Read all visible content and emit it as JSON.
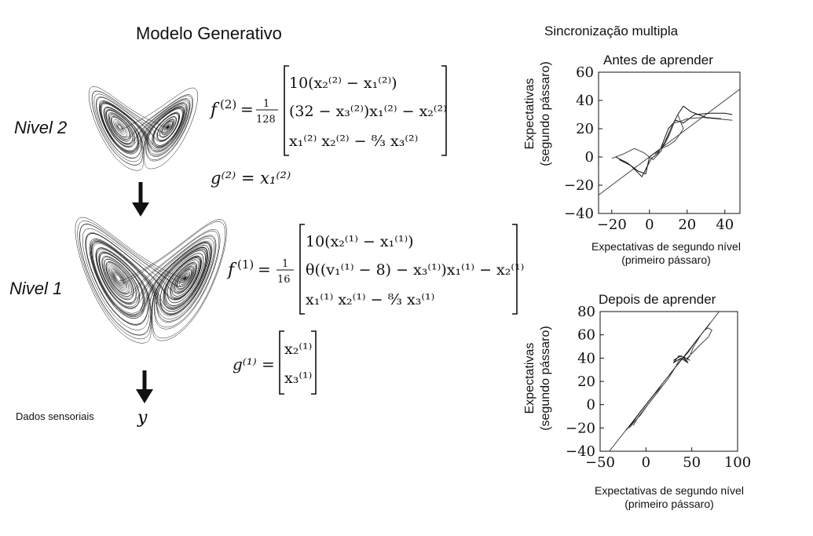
{
  "titles": {
    "main": "Modelo Generativo",
    "right": "Sincronização multipla"
  },
  "levels": {
    "level2": "Nivel 2",
    "level1": "Nivel 1",
    "sensory": "Dados sensoriais",
    "output_symbol": "y"
  },
  "equations": {
    "f2": {
      "lhs": "f",
      "lhs_sup": "(2)",
      "frac_num": "1",
      "frac_den": "128",
      "rows": [
        "10(x₂⁽²⁾ − x₁⁽²⁾)",
        "(32 − x₃⁽²⁾)x₁⁽²⁾ − x₂⁽²⁾",
        "x₁⁽²⁾ x₂⁽²⁾ − ⁸⁄₃ x₃⁽²⁾"
      ]
    },
    "g2": "g⁽²⁾ = x₁⁽²⁾",
    "f1": {
      "lhs": "f",
      "lhs_sup": "(1)",
      "frac_num": "1",
      "frac_den": "16",
      "rows": [
        "10(x₂⁽¹⁾ − x₁⁽¹⁾)",
        "θ((v₁⁽¹⁾ − 8) − x₃⁽¹⁾)x₁⁽¹⁾ − x₂⁽¹⁾",
        "x₁⁽¹⁾ x₂⁽¹⁾ − ⁸⁄₃ x₃⁽¹⁾"
      ]
    },
    "g1": {
      "lhs": "g⁽¹⁾ =",
      "rows": [
        "x₂⁽¹⁾",
        "x₃⁽¹⁾"
      ]
    }
  },
  "chart_data": [
    {
      "type": "line",
      "title": "Antes de aprender",
      "xlabel": "Expectativas de segundo nível\n(primeiro pássaro)",
      "ylabel": "Expectativas\n(segundo pássaro)",
      "xlim": [
        -27,
        48
      ],
      "ylim": [
        -40,
        60
      ],
      "xticks": [
        -20,
        0,
        20,
        40
      ],
      "yticks": [
        -40,
        -20,
        0,
        20,
        40,
        60
      ],
      "identity_line": true,
      "series": [
        {
          "x": [
            -18,
            -12,
            -6,
            -2,
            0,
            3,
            6,
            10,
            14,
            18,
            24,
            32,
            40,
            44
          ],
          "y": [
            0,
            -4,
            -10,
            -12,
            0,
            3,
            6,
            20,
            26,
            24,
            30,
            31,
            31,
            30
          ]
        },
        {
          "x": [
            -20,
            -14,
            -8,
            -3,
            2,
            6,
            10,
            13,
            16,
            20,
            28,
            36,
            44
          ],
          "y": [
            -1,
            2,
            6,
            3,
            -2,
            4,
            14,
            24,
            25,
            27,
            28,
            27,
            26
          ]
        },
        {
          "x": [
            -16,
            -10,
            -4,
            1,
            4,
            8,
            12,
            15,
            18,
            22,
            30,
            38
          ],
          "y": [
            -2,
            -6,
            -14,
            -1,
            2,
            10,
            22,
            30,
            36,
            32,
            28,
            27
          ]
        },
        {
          "x": [
            2,
            6,
            9,
            12,
            15,
            18,
            14,
            10,
            6,
            3
          ],
          "y": [
            0,
            4,
            12,
            22,
            30,
            20,
            12,
            8,
            6,
            2
          ]
        }
      ]
    },
    {
      "type": "line",
      "title": "Depois de aprender",
      "xlabel": "Expectativas de segundo nível\n(primeiro pássaro)",
      "ylabel": "Expectativas\n(segundo pássaro)",
      "xlim": [
        -50,
        100
      ],
      "ylim": [
        -40,
        80
      ],
      "xticks": [
        -50,
        0,
        50,
        100
      ],
      "yticks": [
        -40,
        -20,
        0,
        20,
        40,
        60,
        80
      ],
      "identity_line": true,
      "series": [
        {
          "x": [
            -22,
            -15,
            -8,
            0,
            6,
            14,
            22,
            30,
            38,
            46,
            52,
            58,
            64,
            68,
            70
          ],
          "y": [
            -22,
            -16,
            -8,
            0,
            6,
            14,
            22,
            30,
            38,
            45,
            52,
            58,
            64,
            68,
            70
          ]
        },
        {
          "x": [
            -18,
            -12,
            -6,
            2,
            8,
            16,
            24,
            32,
            36,
            40,
            44,
            48,
            52,
            56,
            60,
            64,
            68,
            72,
            68,
            60,
            55,
            50,
            45
          ],
          "y": [
            -20,
            -14,
            -9,
            0,
            6,
            14,
            22,
            32,
            38,
            40,
            38,
            42,
            50,
            55,
            60,
            64,
            66,
            64,
            58,
            52,
            48,
            44,
            40
          ]
        },
        {
          "x": [
            30,
            34,
            38,
            42,
            46,
            42,
            38,
            34,
            30,
            36,
            44,
            48
          ],
          "y": [
            38,
            40,
            42,
            40,
            36,
            38,
            40,
            38,
            36,
            42,
            40,
            38
          ]
        },
        {
          "x": [
            -14,
            -8,
            -2,
            4,
            10,
            18,
            26
          ],
          "y": [
            -18,
            -10,
            -4,
            2,
            8,
            18,
            26
          ]
        }
      ]
    }
  ]
}
